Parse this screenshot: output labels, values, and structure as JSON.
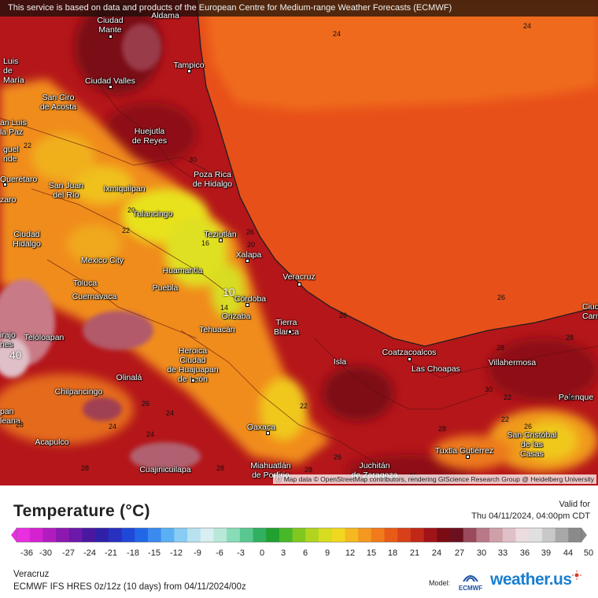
{
  "banner": "This service is based on data and products of the European Centre for Medium-range Weather Forecasts (ECMWF)",
  "attribution": "Map data © OpenStreetMap contributors, rendering GIScience Research Group @ Heidelberg University",
  "cities": [
    {
      "name": "Ciudad\nMante"
    },
    {
      "name": "Aldama"
    },
    {
      "name": "Tampico"
    },
    {
      "name": "Luis\nde\nMaría"
    },
    {
      "name": "Ciudad Valles"
    },
    {
      "name": "San Ciro\nde Acosta"
    },
    {
      "name": "an Luis\nla Paz"
    },
    {
      "name": "Huejutla\nde Reyes"
    },
    {
      "name": "guel\nnde"
    },
    {
      "name": "Poza Rica\nde Hidalgo"
    },
    {
      "name": "Querétaro"
    },
    {
      "name": "San Juan\ndel Río"
    },
    {
      "name": "Ixmiquilpan"
    },
    {
      "name": "Tulancingo"
    },
    {
      "name": "zaro"
    },
    {
      "name": "Teziutlán"
    },
    {
      "name": "Ciudad\nHidalgo"
    },
    {
      "name": "Xalapa"
    },
    {
      "name": "Mexico City"
    },
    {
      "name": "Huamantla"
    },
    {
      "name": "Toluca"
    },
    {
      "name": "Veracruz"
    },
    {
      "name": "Puebla"
    },
    {
      "name": "Cuernavaca"
    },
    {
      "name": "Córdoba"
    },
    {
      "name": "Orizaba"
    },
    {
      "name": "Tierra\nBlanca"
    },
    {
      "name": "Ciudad\nCarme"
    },
    {
      "name": "Tehuacán"
    },
    {
      "name": "Teloloapan"
    },
    {
      "name": "irajo\nnes"
    },
    {
      "name": "Heroica\nCiudad\nde Huajuapan\nde León"
    },
    {
      "name": "Coatzacoalcos"
    },
    {
      "name": "Isla"
    },
    {
      "name": "Las Choapas"
    },
    {
      "name": "Villahermosa"
    },
    {
      "name": "Olinalá"
    },
    {
      "name": "Chilpancingo"
    },
    {
      "name": "Palenque"
    },
    {
      "name": "pan\nleana"
    },
    {
      "name": "Oaxaca"
    },
    {
      "name": "San Cristóbal\nde las\nCasas"
    },
    {
      "name": "Acapulco"
    },
    {
      "name": "Tuxtla Gutiérrez"
    },
    {
      "name": "Cuajinicuilapa"
    },
    {
      "name": "Miahuatlán\nde Porfirio"
    },
    {
      "name": "Juchitán\nde Zaragoza"
    }
  ],
  "isotherm_labels": [
    "24",
    "24",
    "22",
    "30",
    "20",
    "22",
    "26",
    "20",
    "16",
    "14",
    "10",
    "26",
    "26",
    "28",
    "28",
    "40",
    "24",
    "24",
    "22",
    "22",
    "26",
    "26",
    "28",
    "22",
    "30",
    "30",
    "28",
    "24",
    "26",
    "28",
    "28",
    "30",
    "28",
    "30"
  ],
  "legend": {
    "title": "Temperature (°C)",
    "valid_label": "Valid for",
    "valid_time": "Thu 04/11/2024, 04:00pm CDT",
    "ticks": [
      "-36",
      "-30",
      "-27",
      "-24",
      "-21",
      "-18",
      "-15",
      "-12",
      "-9",
      "-6",
      "-3",
      "0",
      "3",
      "6",
      "9",
      "12",
      "15",
      "18",
      "21",
      "24",
      "27",
      "30",
      "33",
      "36",
      "39",
      "44",
      "50"
    ],
    "location": "Veracruz",
    "model_run": "ECMWF IFS HRES 0z/12z (10 days) from  04/11/2024/00z",
    "model_label": "Model:",
    "model_logo": "ECMWF",
    "brand": "weather.us"
  },
  "colors": {
    "ocean": "#e8501a",
    "gulf_north": "#ef6a1a",
    "coast_dark": "#b4161a",
    "highland_yellow": "#e8e21e",
    "orange": "#f29a1e",
    "pink_hot": "#c87a86"
  },
  "colorbar": [
    "#e830e0",
    "#d522d0",
    "#b01cc0",
    "#8c18b0",
    "#6c18a8",
    "#4a18a0",
    "#3020a8",
    "#2830c0",
    "#2048d8",
    "#2068e8",
    "#3a8af0",
    "#5ab0f4",
    "#88ccf4",
    "#b8e2f0",
    "#d8eef0",
    "#b8e8d8",
    "#88dcb8",
    "#58c890",
    "#30b060",
    "#20a030",
    "#48b828",
    "#80c820",
    "#b0d420",
    "#d8dc20",
    "#f0d820",
    "#f4b820",
    "#f49820",
    "#f07a1c",
    "#e85a18",
    "#d8401a",
    "#c02818",
    "#a01418",
    "#7c0c14",
    "#6c1020",
    "#9a4a5a",
    "#b87888",
    "#d0a0a8",
    "#e0c0c8",
    "#ecdce0",
    "#e0e0e0",
    "#c8c8c8",
    "#a8a8a8",
    "#8a8a8a"
  ]
}
